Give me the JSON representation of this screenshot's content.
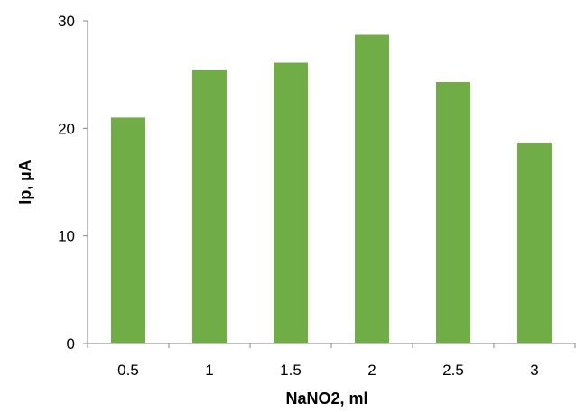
{
  "chart_data": {
    "type": "bar",
    "categories": [
      "0.5",
      "1",
      "1.5",
      "2",
      "2.5",
      "3"
    ],
    "values": [
      21.0,
      25.4,
      26.1,
      28.7,
      24.3,
      18.6
    ],
    "title": "",
    "xlabel": "NaNO2, ml",
    "ylabel": "Ip, µA",
    "ylim": [
      0,
      30
    ],
    "yticks": [
      "0",
      "10",
      "20",
      "30"
    ],
    "grid": false,
    "legend": "none",
    "bar_color": "#70AD47",
    "axis_color": "#868686"
  }
}
